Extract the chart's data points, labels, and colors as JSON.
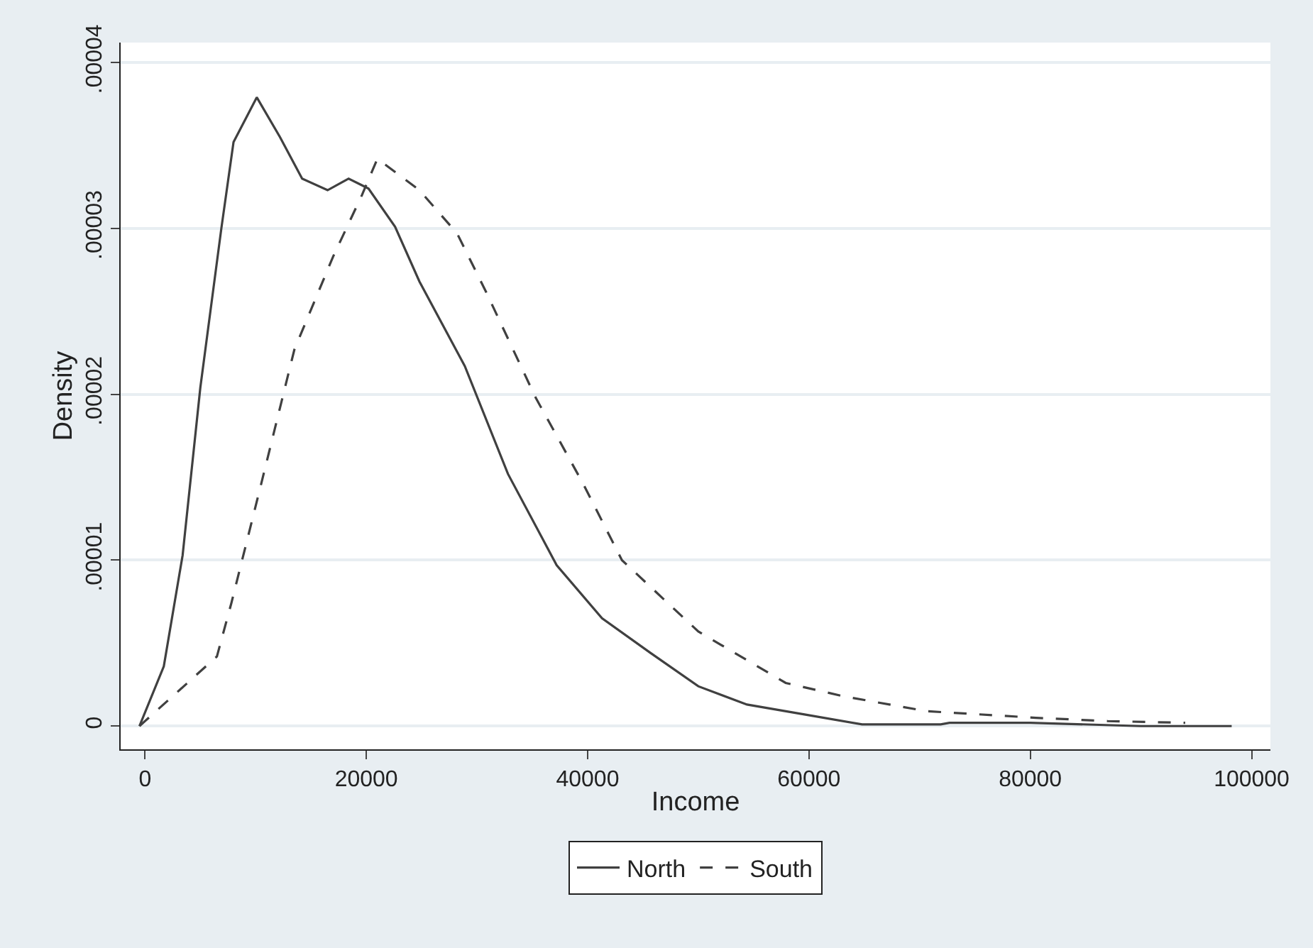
{
  "chart_data": {
    "type": "line",
    "xlabel": "Income",
    "ylabel": "Density",
    "xlim": [
      -2200,
      101700
    ],
    "ylim": [
      -1.4e-06,
      4.12e-05
    ],
    "xticks": [
      0,
      20000,
      40000,
      60000,
      80000,
      100000
    ],
    "yticks": [
      {
        "value": 0,
        "label": "0"
      },
      {
        "value": 1e-05,
        "label": ".00001"
      },
      {
        "value": 2e-05,
        "label": ".00002"
      },
      {
        "value": 3e-05,
        "label": ".00003"
      },
      {
        "value": 4e-05,
        "label": ".00004"
      }
    ],
    "grid": "y",
    "legend": "bottom",
    "series": [
      {
        "name": "North",
        "color": "#404040",
        "line_style": "solid",
        "x": [
          -500,
          1700,
          3400,
          5000,
          6900,
          8000,
          10100,
          12200,
          14200,
          16500,
          18400,
          20200,
          22600,
          24800,
          28900,
          32800,
          37200,
          41300,
          45700,
          50000,
          54400,
          59600,
          64800,
          71900,
          72700,
          80000,
          90000,
          98200
        ],
        "values": [
          0,
          3.6e-06,
          1.03e-05,
          2.04e-05,
          3e-05,
          3.52e-05,
          3.79e-05,
          3.55e-05,
          3.3e-05,
          3.23e-05,
          3.3e-05,
          3.24e-05,
          3.01e-05,
          2.68e-05,
          2.17e-05,
          1.52e-05,
          9.7e-06,
          6.5e-06,
          4.4e-06,
          2.4e-06,
          1.3e-06,
          7e-07,
          1e-07,
          1e-07,
          2e-07,
          2e-07,
          0,
          0
        ]
      },
      {
        "name": "South",
        "color": "#404040",
        "line_style": "dashed",
        "x": [
          -500,
          6500,
          7800,
          10500,
          13500,
          17000,
          19600,
          21000,
          24800,
          28200,
          30800,
          35300,
          39600,
          43100,
          50000,
          57900,
          63100,
          70600,
          80500,
          87000,
          94000
        ],
        "values": [
          0,
          4.2e-06,
          7.4e-06,
          1.46e-05,
          2.27e-05,
          2.83e-05,
          3.2e-05,
          3.42e-05,
          3.23e-05,
          2.97e-05,
          2.62e-05,
          1.98e-05,
          1.46e-05,
          1e-05,
          5.7e-06,
          2.6e-06,
          1.8e-06,
          9e-07,
          5e-07,
          3e-07,
          2e-07
        ]
      }
    ]
  }
}
